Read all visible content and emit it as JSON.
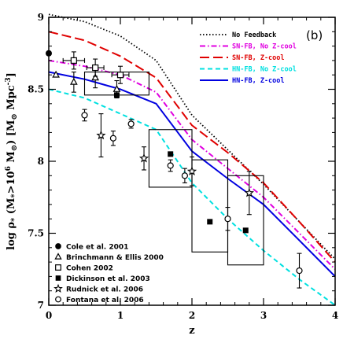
{
  "panel_label": "(b)",
  "chart_data": {
    "type": "line",
    "xlabel": "z",
    "ylabel": "log ρ* (M*>10^6 M☉) [M☉ Mpc^-3]",
    "ylabel_parts": {
      "pre": "log ρ",
      "sub1": "*",
      "mid": " (M",
      "sub2": "*",
      "mid2": ">10",
      "sup1": "6",
      "mid3": " M",
      "sub3": "⊙",
      "mid4": ") [M",
      "sub4": "⊙",
      "mid5": " Mpc",
      "sup2": "-3",
      "post": "]"
    },
    "xlim": [
      0,
      4
    ],
    "ylim": [
      7,
      9
    ],
    "x_ticks": [
      0,
      1,
      2,
      3,
      4
    ],
    "y_ticks": [
      7,
      7.5,
      8,
      8.5,
      9
    ],
    "x_tick_labels": [
      "0",
      "1",
      "2",
      "3",
      "4"
    ],
    "y_tick_labels": [
      "7",
      "7.5",
      "8",
      "8.5",
      "9"
    ],
    "legend_placement": "top-right",
    "series": [
      {
        "name": "No Feedback",
        "color": "#000000",
        "dash": "dotted",
        "x": [
          0,
          0.5,
          1,
          1.5,
          2,
          2.5,
          3,
          3.5,
          4
        ],
        "y": [
          9.02,
          8.97,
          8.87,
          8.7,
          8.32,
          8.08,
          7.84,
          7.58,
          7.32
        ]
      },
      {
        "name": "SN-FB, No Z-cool",
        "color": "#e000e0",
        "dash": "dashdot",
        "x": [
          0,
          0.5,
          1,
          1.5,
          2,
          2.5,
          3,
          3.5,
          4
        ],
        "y": [
          8.7,
          8.66,
          8.6,
          8.48,
          8.15,
          7.95,
          7.75,
          7.5,
          7.25
        ]
      },
      {
        "name": "SN-FB, Z-cool",
        "color": "#e00000",
        "dash": "longdash",
        "x": [
          0,
          0.5,
          1,
          1.5,
          2,
          2.5,
          3,
          3.5,
          4
        ],
        "y": [
          8.9,
          8.84,
          8.73,
          8.58,
          8.25,
          8.06,
          7.85,
          7.58,
          7.3
        ]
      },
      {
        "name": "HN-FB, No Z-cool",
        "color": "#00e0e0",
        "dash": "dashed",
        "x": [
          0,
          0.5,
          1,
          1.5,
          2,
          2.5,
          3,
          3.5,
          4
        ],
        "y": [
          8.5,
          8.44,
          8.33,
          8.22,
          7.85,
          7.6,
          7.38,
          7.18,
          7.0
        ]
      },
      {
        "name": "HN-FB, Z-cool",
        "color": "#0000e0",
        "dash": "solid",
        "x": [
          0,
          0.5,
          1,
          1.5,
          2,
          2.5,
          3,
          3.5,
          4
        ],
        "y": [
          8.62,
          8.57,
          8.5,
          8.4,
          8.07,
          7.88,
          7.7,
          7.45,
          7.2
        ]
      }
    ],
    "observations": [
      {
        "name": "Cole et al. 2001",
        "marker": "filled-circle",
        "points": [
          {
            "x": 0.0,
            "y": 8.75
          }
        ]
      },
      {
        "name": "Brinchmann & Ellis 2000",
        "marker": "open-triangle",
        "points": [
          {
            "x": 0.1,
            "y": 8.6
          },
          {
            "x": 0.35,
            "y": 8.55,
            "yerr": 0.07
          },
          {
            "x": 0.65,
            "y": 8.58,
            "yerr": 0.07
          },
          {
            "x": 0.95,
            "y": 8.5,
            "yerr": 0.06
          }
        ]
      },
      {
        "name": "Cohen 2002",
        "marker": "open-square",
        "points": [
          {
            "x": 0.35,
            "y": 8.7,
            "xerr": 0.15,
            "yerr": 0.06
          },
          {
            "x": 0.65,
            "y": 8.65,
            "xerr": 0.12,
            "yerr": 0.06
          },
          {
            "x": 1.0,
            "y": 8.6,
            "xerr": 0.12,
            "yerr": 0.06
          }
        ]
      },
      {
        "name": "Dickinson et al. 2003",
        "marker": "filled-square",
        "points": [
          {
            "x": 0.95,
            "y": 8.46,
            "x_range": [
              0.5,
              1.4
            ],
            "y_range": [
              8.46,
              8.62
            ]
          },
          {
            "x": 1.7,
            "y": 8.05,
            "x_range": [
              1.4,
              2.0
            ],
            "y_range": [
              7.82,
              8.22
            ]
          },
          {
            "x": 2.25,
            "y": 7.58,
            "x_range": [
              2.0,
              2.5
            ],
            "y_range": [
              7.37,
              8.01
            ]
          },
          {
            "x": 2.75,
            "y": 7.52,
            "x_range": [
              2.5,
              3.0
            ],
            "y_range": [
              7.28,
              7.9
            ]
          }
        ]
      },
      {
        "name": "Rudnick et al. 2006",
        "marker": "open-star",
        "points": [
          {
            "x": 0.73,
            "y": 8.18,
            "yerr": 0.15
          },
          {
            "x": 1.33,
            "y": 8.02,
            "yerr": 0.08
          },
          {
            "x": 2.0,
            "y": 7.93,
            "yerr": 0.1
          },
          {
            "x": 2.8,
            "y": 7.78,
            "yerr": 0.15
          }
        ]
      },
      {
        "name": "Fontana et al. 2006",
        "marker": "open-circle",
        "points": [
          {
            "x": 0.5,
            "y": 8.32,
            "yerr": 0.04
          },
          {
            "x": 0.9,
            "y": 8.16,
            "yerr": 0.05
          },
          {
            "x": 1.15,
            "y": 8.26,
            "yerr": 0.03
          },
          {
            "x": 1.7,
            "y": 7.97,
            "yerr": 0.04
          },
          {
            "x": 1.9,
            "y": 7.9,
            "yerr": 0.05
          },
          {
            "x": 2.5,
            "y": 7.6,
            "yerr": 0.08
          },
          {
            "x": 3.5,
            "y": 7.24,
            "yerr": 0.12
          }
        ]
      }
    ]
  }
}
